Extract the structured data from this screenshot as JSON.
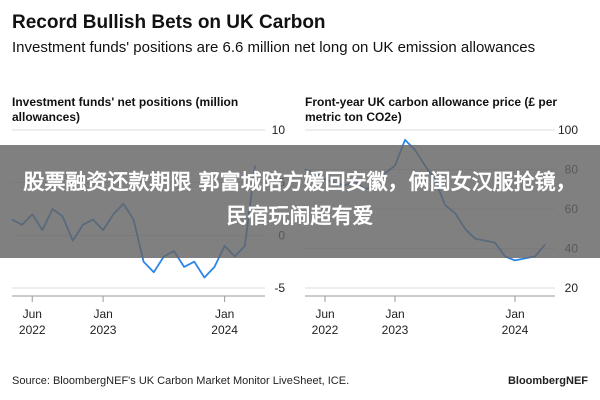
{
  "header": {
    "title": "Record Bullish Bets on UK Carbon",
    "subtitle": "Investment funds' positions are 6.6 million net long on UK emission allowances"
  },
  "footer": {
    "source": "Source: BloombergNEF's UK Carbon Market Monitor LiveSheet, ICE.",
    "brand": "BloombergNEF"
  },
  "overlay": {
    "text": "股票融资还款期限 郭富城陪方媛回安徽，俩闺女汉服抢镜，民宿玩闹超有爱"
  },
  "colors": {
    "line": "#2a86e8",
    "grid": "#dddddd",
    "overlay": "#646464"
  },
  "chart_data": [
    {
      "type": "line",
      "title": "Investment funds' net positions (million allowances)",
      "x": [
        "2022-04",
        "2022-05",
        "2022-06",
        "2022-07",
        "2022-08",
        "2022-09",
        "2022-10",
        "2022-11",
        "2022-12",
        "2023-01",
        "2023-02",
        "2023-03",
        "2023-04",
        "2023-05",
        "2023-06",
        "2023-07",
        "2023-08",
        "2023-09",
        "2023-10",
        "2023-11",
        "2023-12",
        "2024-01",
        "2024-02",
        "2024-03",
        "2024-04"
      ],
      "series": [
        {
          "values": [
            1.5,
            1.0,
            2.0,
            0.5,
            2.5,
            1.8,
            -0.5,
            1.0,
            1.5,
            0.5,
            2.0,
            3.0,
            1.5,
            -2.5,
            -3.5,
            -2.0,
            -1.5,
            -3.0,
            -2.5,
            -4.0,
            -3.0,
            -1.0,
            -2.0,
            -1.0,
            6.6
          ]
        }
      ],
      "ylim": [
        -5,
        10
      ],
      "yticks": [
        -5,
        0,
        5,
        10
      ],
      "xticks": [
        {
          "at": "2022-06",
          "label": [
            "Jun",
            "2022"
          ]
        },
        {
          "at": "2023-01",
          "label": [
            "Jan",
            "2023"
          ]
        },
        {
          "at": "2024-01",
          "label": [
            "Jan",
            "2024"
          ]
        }
      ],
      "grid": true
    },
    {
      "type": "line",
      "title": "Front-year UK carbon allowance price (£ per metric ton CO2e)",
      "x": [
        "2022-04",
        "2022-05",
        "2022-06",
        "2022-07",
        "2022-08",
        "2022-09",
        "2022-10",
        "2022-11",
        "2022-12",
        "2023-01",
        "2023-02",
        "2023-03",
        "2023-04",
        "2023-05",
        "2023-06",
        "2023-07",
        "2023-08",
        "2023-09",
        "2023-10",
        "2023-11",
        "2023-12",
        "2024-01",
        "2024-02",
        "2024-03",
        "2024-04"
      ],
      "series": [
        {
          "values": [
            80,
            78,
            75,
            73,
            72,
            74,
            70,
            72,
            78,
            82,
            95,
            90,
            82,
            75,
            62,
            58,
            50,
            45,
            44,
            43,
            36,
            34,
            35,
            36,
            42
          ]
        }
      ],
      "ylim": [
        20,
        100
      ],
      "yticks": [
        20,
        40,
        60,
        80,
        100
      ],
      "xticks": [
        {
          "at": "2022-06",
          "label": [
            "Jun",
            "2022"
          ]
        },
        {
          "at": "2023-01",
          "label": [
            "Jan",
            "2023"
          ]
        },
        {
          "at": "2024-01",
          "label": [
            "Jan",
            "2024"
          ]
        }
      ],
      "grid": true
    }
  ]
}
